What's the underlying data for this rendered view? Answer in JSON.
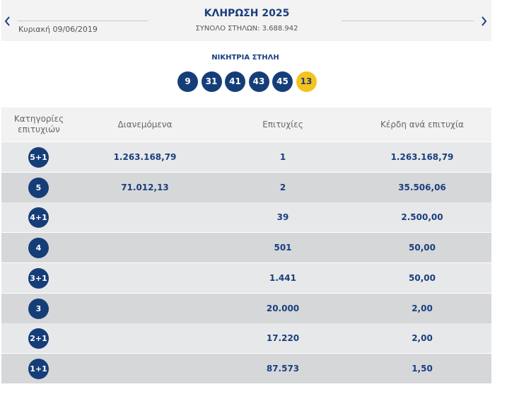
{
  "header": {
    "title": "ΚΛΗΡΩΣΗ 2025",
    "date": "Κυριακή 09/06/2019",
    "total_columns": "ΣΥΝΟΛΟ ΣΤΗΛΩΝ: 3.688.942"
  },
  "winning": {
    "label": "ΝΙΚΗΤΡΙΑ ΣΤΗΛΗ",
    "numbers": [
      "9",
      "31",
      "41",
      "43",
      "45"
    ],
    "joker": "13"
  },
  "table": {
    "columns": [
      "Κατηγορίες επιτυχιών",
      "Διανεμόμενα",
      "Επιτυχίες",
      "Κέρδη ανά επιτυχία"
    ],
    "rows": [
      {
        "category": "5+1",
        "distributed": "1.263.168,79",
        "winners": "1",
        "prize": "1.263.168,79"
      },
      {
        "category": "5",
        "distributed": "71.012,13",
        "winners": "2",
        "prize": "35.506,06"
      },
      {
        "category": "4+1",
        "winners": "39",
        "prize": "2.500,00"
      },
      {
        "category": "4",
        "winners": "501",
        "prize": "50,00"
      },
      {
        "category": "3+1",
        "winners": "1.441",
        "prize": "50,00"
      },
      {
        "category": "3",
        "winners": "20.000",
        "prize": "2,00"
      },
      {
        "category": "2+1",
        "winners": "17.220",
        "prize": "2,00"
      },
      {
        "category": "1+1",
        "winners": "87.573",
        "prize": "1,50"
      }
    ]
  }
}
